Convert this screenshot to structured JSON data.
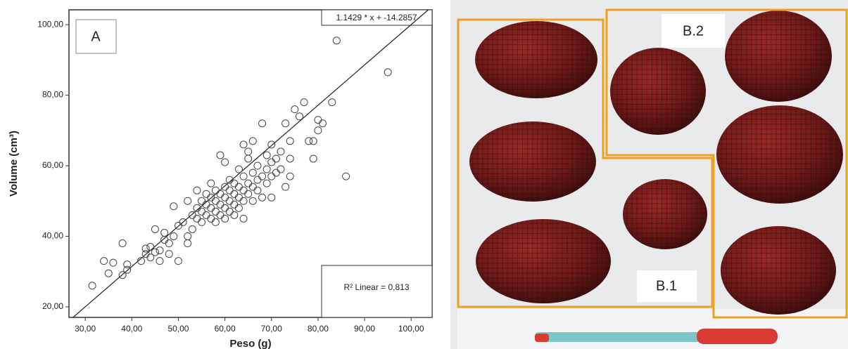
{
  "chart_data": {
    "type": "scatter",
    "panel_label": "A",
    "annotation": "1.1429 * x + -14.2857",
    "r2_label": "R² Linear = 0,813",
    "xlabel": "Peso (g)",
    "ylabel": "Volume (cm³)",
    "fit": {
      "slope": 1.1429,
      "intercept": -14.2857
    },
    "marker_color": "#444444",
    "xlim": [
      26.5,
      104.5
    ],
    "ylim": [
      17,
      104.2
    ],
    "xticks": [
      {
        "value": 30,
        "label": "30,00"
      },
      {
        "value": 40,
        "label": "40,00"
      },
      {
        "value": 50,
        "label": "50,00"
      },
      {
        "value": 60,
        "label": "60,00"
      },
      {
        "value": 70,
        "label": "70,00"
      },
      {
        "value": 80,
        "label": "80,00"
      },
      {
        "value": 90,
        "label": "90,00"
      },
      {
        "value": 100,
        "label": "100,00"
      }
    ],
    "yticks": [
      {
        "value": 20,
        "label": "20,00"
      },
      {
        "value": 40,
        "label": "40,00"
      },
      {
        "value": 60,
        "label": "60,00"
      },
      {
        "value": 80,
        "label": "80,00"
      },
      {
        "value": 100,
        "label": "100,00"
      }
    ],
    "x": [
      31.5,
      34,
      35,
      36,
      38,
      38,
      39,
      39,
      42,
      43,
      43,
      44,
      44,
      45,
      45,
      46,
      46,
      47,
      47,
      48,
      48,
      49,
      49,
      50,
      50,
      51,
      52,
      52,
      52,
      53,
      53,
      54,
      54,
      54,
      55,
      55,
      55,
      56,
      56,
      56,
      57,
      57,
      57,
      57,
      58,
      58,
      58,
      58,
      59,
      59,
      59,
      59,
      60,
      60,
      60,
      60,
      60,
      61,
      61,
      61,
      61,
      62,
      62,
      62,
      62,
      63,
      63,
      63,
      63,
      64,
      64,
      64,
      64,
      64,
      65,
      65,
      65,
      65,
      66,
      66,
      66,
      66,
      67,
      67,
      67,
      68,
      68,
      68,
      69,
      69,
      69,
      70,
      70,
      70,
      70,
      71,
      71,
      72,
      72,
      73,
      73,
      74,
      74,
      74,
      75,
      76,
      77,
      78,
      79,
      79,
      80,
      80,
      81,
      83,
      84,
      86,
      95
    ],
    "values": [
      26,
      33,
      29.5,
      32.5,
      38,
      29,
      32,
      30.5,
      33,
      35,
      36.5,
      34,
      37,
      35.5,
      42,
      33,
      36,
      39,
      41,
      38,
      35,
      48.5,
      40,
      33,
      43,
      44,
      50,
      40,
      38,
      42,
      46,
      45,
      48,
      53,
      44,
      47,
      50,
      46,
      49,
      52,
      45,
      48,
      51,
      55,
      44,
      47,
      50,
      53,
      46,
      49,
      52,
      63,
      45,
      48,
      51,
      54,
      61,
      47,
      50,
      53,
      56,
      46,
      49,
      52,
      55,
      48,
      51,
      54,
      59,
      45,
      50,
      53,
      57,
      66,
      52,
      55,
      62,
      64,
      50,
      54,
      58,
      67,
      53,
      56,
      60,
      51,
      57,
      72,
      55,
      59,
      63,
      51,
      57,
      61,
      66,
      58,
      62,
      59,
      64,
      54,
      72,
      57,
      62,
      67,
      76,
      74,
      78,
      67,
      62,
      67,
      73,
      70,
      72,
      78,
      95.5,
      57,
      86.5
    ]
  },
  "photo": {
    "label_b2": "B.2",
    "label_b1": "B.1"
  }
}
